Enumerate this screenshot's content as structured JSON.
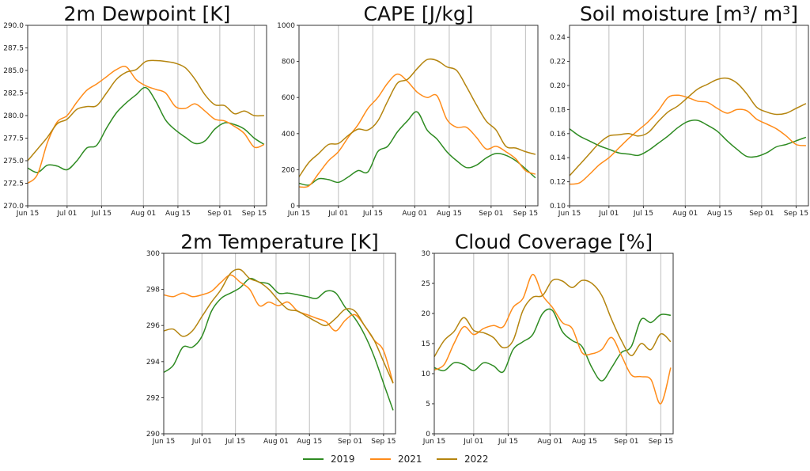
{
  "chart_data": [
    {
      "type": "line",
      "title": "2m Dewpoint [K]",
      "xlabel": "",
      "ylabel": "",
      "x_unit": "days since Jun 15",
      "x": [
        0,
        4,
        8,
        12,
        16,
        20,
        24,
        28,
        32,
        36,
        40,
        44,
        48,
        52,
        56,
        60,
        64,
        68,
        72,
        76,
        80,
        84,
        88,
        92,
        96
      ],
      "xlim": [
        0,
        97
      ],
      "xticks": [
        {
          "v": 0,
          "label": "Jun 15"
        },
        {
          "v": 16,
          "label": "Jul 01"
        },
        {
          "v": 30,
          "label": "Jul 15"
        },
        {
          "v": 47,
          "label": "Aug 01"
        },
        {
          "v": 61,
          "label": "Aug 15"
        },
        {
          "v": 78,
          "label": "Sep 01"
        },
        {
          "v": 92,
          "label": "Sep 15"
        }
      ],
      "ylim": [
        270,
        290
      ],
      "yticks": [
        "270.0",
        "272.5",
        "275.0",
        "277.5",
        "280.0",
        "282.5",
        "285.0",
        "287.5",
        "290.0"
      ],
      "grid": "vertical",
      "series": [
        {
          "name": "2019",
          "values": [
            274.2,
            273.7,
            274.5,
            274.4,
            274.0,
            275.0,
            276.4,
            276.7,
            278.6,
            280.3,
            281.4,
            282.3,
            283.1,
            281.6,
            279.5,
            278.4,
            277.6,
            276.9,
            277.2,
            278.5,
            279.2,
            279.0,
            278.5,
            277.5,
            276.8
          ]
        },
        {
          "name": "2021",
          "values": [
            272.5,
            273.5,
            277.0,
            279.3,
            280.0,
            281.5,
            282.8,
            283.5,
            284.3,
            285.1,
            285.4,
            284.0,
            283.3,
            282.9,
            282.5,
            281.0,
            280.8,
            281.3,
            280.5,
            279.6,
            279.4,
            278.8,
            278.0,
            276.5,
            276.8
          ]
        },
        {
          "name": "2022",
          "values": [
            275.0,
            276.3,
            277.6,
            279.1,
            279.6,
            280.7,
            281.0,
            281.1,
            282.5,
            284.0,
            284.8,
            285.1,
            286.0,
            286.1,
            286.0,
            285.8,
            285.3,
            284.0,
            282.3,
            281.2,
            281.1,
            280.2,
            280.5,
            280.0,
            280.0
          ]
        }
      ]
    },
    {
      "type": "line",
      "title": "CAPE [J/kg]",
      "xlabel": "",
      "ylabel": "",
      "x": [
        0,
        4,
        8,
        12,
        16,
        20,
        24,
        28,
        32,
        36,
        40,
        44,
        48,
        52,
        56,
        60,
        64,
        68,
        72,
        76,
        80,
        84,
        88,
        92,
        96
      ],
      "xlim": [
        0,
        97
      ],
      "xticks": [
        {
          "v": 0,
          "label": "Jun 15"
        },
        {
          "v": 16,
          "label": "Jul 01"
        },
        {
          "v": 30,
          "label": "Jul 15"
        },
        {
          "v": 47,
          "label": "Aug 01"
        },
        {
          "v": 61,
          "label": "Aug 15"
        },
        {
          "v": 78,
          "label": "Sep 01"
        },
        {
          "v": 92,
          "label": "Sep 15"
        }
      ],
      "ylim": [
        0,
        1000
      ],
      "yticks": [
        "0",
        "200",
        "400",
        "600",
        "800",
        "1000"
      ],
      "grid": "vertical",
      "series": [
        {
          "name": "2019",
          "values": [
            125,
            115,
            150,
            145,
            130,
            160,
            195,
            188,
            300,
            330,
            410,
            470,
            520,
            420,
            370,
            300,
            250,
            212,
            225,
            265,
            290,
            280,
            250,
            205,
            155
          ]
        },
        {
          "name": "2021",
          "values": [
            105,
            110,
            180,
            250,
            300,
            380,
            450,
            540,
            600,
            680,
            730,
            690,
            630,
            600,
            610,
            480,
            435,
            435,
            380,
            315,
            330,
            300,
            260,
            195,
            175
          ]
        },
        {
          "name": "2022",
          "values": [
            160,
            240,
            290,
            340,
            345,
            390,
            425,
            420,
            470,
            580,
            680,
            700,
            760,
            810,
            805,
            770,
            750,
            660,
            560,
            470,
            420,
            330,
            320,
            300,
            285
          ]
        }
      ]
    },
    {
      "type": "line",
      "title": "Soil moisture [m³/ m³]",
      "xlabel": "",
      "ylabel": "",
      "x": [
        0,
        4,
        8,
        12,
        16,
        20,
        24,
        28,
        32,
        36,
        40,
        44,
        48,
        52,
        56,
        60,
        64,
        68,
        72,
        76,
        80,
        84,
        88,
        92,
        96
      ],
      "xlim": [
        0,
        97
      ],
      "xticks": [
        {
          "v": 0,
          "label": "Jun 15"
        },
        {
          "v": 16,
          "label": "Jul 01"
        },
        {
          "v": 30,
          "label": "Jul 15"
        },
        {
          "v": 47,
          "label": "Aug 01"
        },
        {
          "v": 61,
          "label": "Aug 15"
        },
        {
          "v": 78,
          "label": "Sep 01"
        },
        {
          "v": 92,
          "label": "Sep 15"
        }
      ],
      "ylim": [
        0.1,
        0.25
      ],
      "yticks": [
        "0.10",
        "0.12",
        "0.14",
        "0.16",
        "0.18",
        "0.20",
        "0.22",
        "0.24"
      ],
      "grid": "vertical",
      "series": [
        {
          "name": "2019",
          "values": [
            0.164,
            0.158,
            0.154,
            0.15,
            0.147,
            0.144,
            0.143,
            0.142,
            0.146,
            0.152,
            0.158,
            0.165,
            0.17,
            0.171,
            0.167,
            0.162,
            0.154,
            0.147,
            0.141,
            0.141,
            0.144,
            0.149,
            0.151,
            0.154,
            0.157
          ]
        },
        {
          "name": "2021",
          "values": [
            0.118,
            0.119,
            0.126,
            0.134,
            0.14,
            0.148,
            0.156,
            0.163,
            0.17,
            0.179,
            0.19,
            0.192,
            0.19,
            0.187,
            0.186,
            0.181,
            0.177,
            0.18,
            0.179,
            0.172,
            0.168,
            0.164,
            0.158,
            0.151,
            0.15
          ]
        },
        {
          "name": "2022",
          "values": [
            0.125,
            0.134,
            0.143,
            0.152,
            0.158,
            0.159,
            0.16,
            0.158,
            0.161,
            0.17,
            0.178,
            0.183,
            0.19,
            0.197,
            0.201,
            0.205,
            0.206,
            0.202,
            0.193,
            0.182,
            0.178,
            0.176,
            0.177,
            0.181,
            0.185
          ]
        }
      ]
    },
    {
      "type": "line",
      "title": "2m Temperature [K]",
      "xlabel": "",
      "ylabel": "",
      "x": [
        0,
        4,
        8,
        12,
        16,
        20,
        24,
        28,
        32,
        36,
        40,
        44,
        48,
        52,
        56,
        60,
        64,
        68,
        72,
        76,
        80,
        84,
        88,
        92,
        96
      ],
      "xlim": [
        0,
        97
      ],
      "xticks": [
        {
          "v": 0,
          "label": "Jun 15"
        },
        {
          "v": 16,
          "label": "Jul 01"
        },
        {
          "v": 30,
          "label": "Jul 15"
        },
        {
          "v": 47,
          "label": "Aug 01"
        },
        {
          "v": 61,
          "label": "Aug 15"
        },
        {
          "v": 78,
          "label": "Sep 01"
        },
        {
          "v": 92,
          "label": "Sep 15"
        }
      ],
      "ylim": [
        290,
        300
      ],
      "yticks": [
        "290",
        "292",
        "294",
        "296",
        "298",
        "300"
      ],
      "grid": "vertical",
      "series": [
        {
          "name": "2019",
          "values": [
            293.4,
            293.8,
            294.8,
            294.8,
            295.4,
            296.8,
            297.5,
            297.8,
            298.1,
            298.6,
            298.4,
            298.3,
            297.8,
            297.8,
            297.7,
            297.6,
            297.5,
            297.9,
            297.8,
            297.0,
            296.4,
            295.5,
            294.3,
            292.8,
            291.3
          ]
        },
        {
          "name": "2021",
          "values": [
            297.7,
            297.6,
            297.8,
            297.6,
            297.7,
            297.9,
            298.4,
            298.8,
            298.4,
            298.0,
            297.1,
            297.3,
            297.1,
            297.3,
            296.8,
            296.6,
            296.4,
            296.2,
            295.7,
            296.3,
            296.6,
            296.0,
            295.2,
            294.6,
            292.8
          ]
        },
        {
          "name": "2022",
          "values": [
            295.7,
            295.8,
            295.4,
            295.7,
            296.5,
            297.3,
            298.0,
            298.9,
            299.1,
            298.6,
            298.4,
            298.0,
            297.4,
            296.9,
            296.8,
            296.5,
            296.2,
            296.0,
            296.4,
            296.9,
            296.8,
            296.0,
            295.2,
            294.0,
            292.8
          ]
        }
      ]
    },
    {
      "type": "line",
      "title": "Cloud Coverage [%]",
      "xlabel": "",
      "ylabel": "",
      "x": [
        0,
        4,
        8,
        12,
        16,
        20,
        24,
        28,
        32,
        36,
        40,
        44,
        48,
        52,
        56,
        60,
        64,
        68,
        72,
        76,
        80,
        84,
        88,
        92,
        96
      ],
      "xlim": [
        0,
        97
      ],
      "xticks": [
        {
          "v": 0,
          "label": "Jun 15"
        },
        {
          "v": 16,
          "label": "Jul 01"
        },
        {
          "v": 30,
          "label": "Jul 15"
        },
        {
          "v": 47,
          "label": "Aug 01"
        },
        {
          "v": 61,
          "label": "Aug 15"
        },
        {
          "v": 78,
          "label": "Sep 01"
        },
        {
          "v": 92,
          "label": "Sep 15"
        }
      ],
      "ylim": [
        0,
        30
      ],
      "yticks": [
        "0",
        "5",
        "10",
        "15",
        "20",
        "25",
        "30"
      ],
      "grid": "vertical",
      "series": [
        {
          "name": "2019",
          "values": [
            11,
            10.5,
            11.8,
            11.5,
            10.5,
            11.8,
            11.3,
            10.3,
            14.0,
            15.3,
            16.5,
            20.0,
            20.5,
            17.0,
            15.5,
            14.5,
            11.0,
            8.8,
            11.0,
            13.5,
            14.5,
            19.0,
            18.5,
            19.8,
            19.7
          ]
        },
        {
          "name": "2021",
          "values": [
            10.6,
            11.5,
            15.0,
            17.8,
            16.5,
            17.5,
            18.0,
            17.8,
            21.0,
            22.5,
            26.5,
            23.0,
            21.0,
            18.5,
            17.5,
            13.5,
            13.3,
            14.0,
            16.0,
            13.0,
            9.8,
            9.5,
            9.0,
            5.0,
            11.0
          ]
        },
        {
          "name": "2022",
          "values": [
            12.8,
            15.5,
            17.0,
            19.3,
            17.2,
            16.8,
            16.0,
            14.3,
            15.5,
            20.5,
            22.7,
            23.0,
            25.5,
            25.4,
            24.3,
            25.5,
            25.0,
            23.0,
            19.0,
            15.5,
            13.0,
            15.0,
            14.0,
            16.6,
            15.3
          ]
        }
      ]
    }
  ],
  "legend": {
    "placement": "bottom-center",
    "entries": [
      {
        "label": "2019",
        "color": "#2e8b22"
      },
      {
        "label": "2021",
        "color": "#ff8c1a"
      },
      {
        "label": "2022",
        "color": "#b5850f"
      }
    ]
  }
}
